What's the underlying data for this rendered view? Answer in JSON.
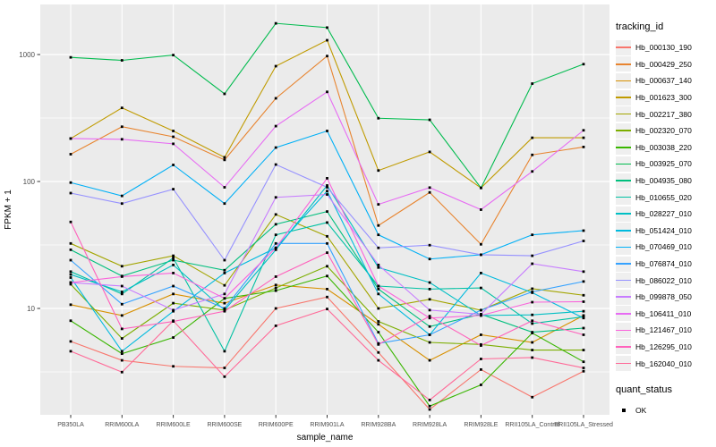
{
  "chart_data": {
    "type": "line",
    "title": "",
    "xlabel": "sample_name",
    "ylabel": "FPKM + 1",
    "x_categories": [
      "PB350LA",
      "RRIM600LA",
      "RRIM600LE",
      "RRIM600SE",
      "RRIM600PE",
      "RRIM901LA",
      "RRIM928BA",
      "RRIM928LA",
      "RRIM928LE",
      "RRII105LA_Control",
      "RRII105LA_Stressed"
    ],
    "y_axis": {
      "scale": "log10",
      "tick_labels": [
        "10",
        "100",
        "1000"
      ],
      "tick_values": [
        10,
        100,
        1000
      ],
      "minor_values": [
        3.162,
        31.62,
        316.2
      ],
      "ylim": [
        1.45,
        2280
      ]
    },
    "legend": {
      "title": "tracking_id",
      "quant_title": "quant_status",
      "quant_items": [
        {
          "label": "OK",
          "marker": "black-square"
        }
      ]
    },
    "style": {
      "panel_bg": "#EBEBEB",
      "grid_color": "#FFFFFF",
      "tick_color": "#333333",
      "tick_label_color": "#4D4D4D",
      "point_color": "#000000"
    },
    "series": [
      {
        "name": "Hb_000130_190",
        "color": "#F8766D",
        "values": [
          5.5,
          3.9,
          3.5,
          3.4,
          10,
          12.3,
          4.5,
          1.6,
          3.3,
          2.0,
          3.2
        ]
      },
      {
        "name": "Hb_000429_250",
        "color": "#E8842F",
        "values": [
          164,
          270,
          225,
          148,
          452,
          973,
          45,
          82,
          32,
          162,
          187
        ]
      },
      {
        "name": "Hb_000637_140",
        "color": "#D89000",
        "values": [
          10.7,
          8.8,
          13,
          11,
          15.3,
          14.2,
          7.5,
          3.9,
          6.2,
          5.4,
          8.8
        ]
      },
      {
        "name": "Hb_001623_300",
        "color": "#C09B00",
        "values": [
          218,
          380,
          250,
          155,
          810,
          1296,
          122,
          171,
          89,
          221,
          221
        ]
      },
      {
        "name": "Hb_002217_380",
        "color": "#A3A500",
        "values": [
          32.5,
          21.5,
          26,
          15.2,
          55,
          37,
          10,
          11.8,
          9.7,
          14.3,
          12.7
        ]
      },
      {
        "name": "Hb_002320_070",
        "color": "#7CAE00",
        "values": [
          15.5,
          5.8,
          11,
          9.7,
          14.5,
          21.5,
          7.9,
          5.4,
          5.2,
          4.7,
          4.7
        ]
      },
      {
        "name": "Hb_003038_220",
        "color": "#39B600",
        "values": [
          8.0,
          4.4,
          5.9,
          12,
          13.8,
          18,
          6.5,
          1.7,
          2.5,
          6.4,
          3.8
        ]
      },
      {
        "name": "Hb_003925_070",
        "color": "#00BB4E",
        "values": [
          950,
          900,
          990,
          490,
          1760,
          1630,
          315,
          306,
          89,
          590,
          840
        ]
      },
      {
        "name": "Hb_004935_080",
        "color": "#00BF7D",
        "values": [
          29,
          18,
          24,
          20,
          46,
          58,
          14.2,
          7.2,
          9.0,
          6.5,
          7.0
        ]
      },
      {
        "name": "Hb_010655_020",
        "color": "#00C1A3",
        "values": [
          19.5,
          13,
          25,
          4.6,
          38,
          47.5,
          15,
          14.2,
          14.5,
          7.6,
          8.6
        ]
      },
      {
        "name": "Hb_028227_010",
        "color": "#00BFC4",
        "values": [
          18.5,
          13.5,
          22,
          9.7,
          29,
          93,
          21,
          16,
          8.8,
          8.9,
          9.5
        ]
      },
      {
        "name": "Hb_051424_010",
        "color": "#00BADE",
        "values": [
          17.5,
          4.6,
          9.5,
          19,
          30,
          84,
          13,
          6.2,
          19,
          13.3,
          8.4
        ]
      },
      {
        "name": "Hb_070469_010",
        "color": "#00B0F6",
        "values": [
          98,
          77,
          135,
          67,
          185,
          250,
          38,
          24.5,
          26.5,
          38,
          41
        ]
      },
      {
        "name": "Hb_076874_010",
        "color": "#35A2FF",
        "values": [
          24,
          10.8,
          15,
          10,
          32.5,
          32.5,
          5.3,
          6.2,
          9.7,
          13.5,
          16.3
        ]
      },
      {
        "name": "Hb_086022_010",
        "color": "#9590FF",
        "values": [
          81,
          67,
          87,
          24,
          136,
          90,
          30,
          31.5,
          26.5,
          26,
          34
        ]
      },
      {
        "name": "Hb_099878_050",
        "color": "#C77CFF",
        "values": [
          16,
          15,
          9.7,
          13,
          75,
          79,
          22,
          9.7,
          9.0,
          22.5,
          19.5
        ]
      },
      {
        "name": "Hb_106411_010",
        "color": "#E76BF3",
        "values": [
          218,
          215,
          198,
          90,
          273,
          508,
          66,
          89.5,
          60,
          120,
          253
        ]
      },
      {
        "name": "Hb_121467_010",
        "color": "#FA62DB",
        "values": [
          16,
          17.8,
          19,
          12,
          30,
          106,
          15,
          8.4,
          8.8,
          11.2,
          11.3
        ]
      },
      {
        "name": "Hb_126295_010",
        "color": "#FF62BC",
        "values": [
          48,
          6.9,
          7.9,
          9.5,
          17.8,
          27.5,
          5.2,
          8.7,
          5.1,
          8.0,
          6.2
        ]
      },
      {
        "name": "Hb_162040_010",
        "color": "#FF6A98",
        "values": [
          4.6,
          3.15,
          8.0,
          2.9,
          7.3,
          9.9,
          3.9,
          1.9,
          4.0,
          4.1,
          3.4
        ]
      }
    ]
  }
}
